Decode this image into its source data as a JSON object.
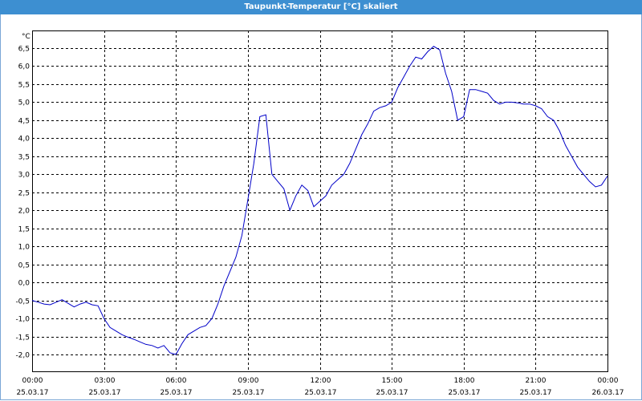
{
  "window": {
    "title": "Taupunkt-Temperatur [°C] skaliert"
  },
  "chart_data": {
    "type": "line",
    "title": "Taupunkt-Temperatur [°C] skaliert",
    "ylabel": "°C",
    "xlabel": "",
    "ylim": [
      -2.25,
      6.75
    ],
    "xlim": [
      0,
      24
    ],
    "grid": true,
    "line_color": "#0000c8",
    "grid_color": "#000000",
    "y_ticks": [
      "6,5",
      "6,0",
      "5,5",
      "5,0",
      "4,5",
      "4,0",
      "3,5",
      "3,0",
      "2,5",
      "2,0",
      "1,5",
      "1,0",
      "0,5",
      "0,0",
      "-0,5",
      "-1,0",
      "-1,5",
      "-2,0"
    ],
    "x_ticks": [
      {
        "time": "00:00",
        "date": "25.03.17"
      },
      {
        "time": "03:00",
        "date": "25.03.17"
      },
      {
        "time": "06:00",
        "date": "25.03.17"
      },
      {
        "time": "09:00",
        "date": "25.03.17"
      },
      {
        "time": "12:00",
        "date": "25.03.17"
      },
      {
        "time": "15:00",
        "date": "25.03.17"
      },
      {
        "time": "18:00",
        "date": "25.03.17"
      },
      {
        "time": "21:00",
        "date": "25.03.17"
      },
      {
        "time": "00:00",
        "date": "26.03.17"
      }
    ],
    "series": [
      {
        "x": [
          0,
          0.25,
          0.5,
          0.75,
          1.0,
          1.25,
          1.5,
          1.75,
          2.0,
          2.25,
          2.5,
          2.75,
          3.0,
          3.25,
          3.5,
          3.75,
          4.0,
          4.25,
          4.5,
          4.75,
          5.0,
          5.25,
          5.5,
          5.75,
          6.0,
          6.25,
          6.5,
          6.75,
          7.0,
          7.25,
          7.5,
          7.75,
          8.0,
          8.25,
          8.5,
          8.75,
          9.0,
          9.25,
          9.5,
          9.75,
          10.0,
          10.25,
          10.5,
          10.75,
          11.0,
          11.25,
          11.5,
          11.75,
          12.0,
          12.25,
          12.5,
          12.75,
          13.0,
          13.25,
          13.5,
          13.75,
          14.0,
          14.25,
          14.5,
          14.75,
          15.0,
          15.25,
          15.5,
          15.75,
          16.0,
          16.25,
          16.5,
          16.75,
          17.0,
          17.25,
          17.5,
          17.75,
          18.0,
          18.25,
          18.5,
          18.75,
          19.0,
          19.25,
          19.5,
          19.75,
          20.0,
          20.25,
          20.5,
          20.75,
          21.0,
          21.25,
          21.5,
          21.75,
          22.0,
          22.25,
          22.5,
          22.75,
          23.0,
          23.25,
          23.5,
          23.75,
          24.0
        ],
        "y": [
          -0.5,
          -0.55,
          -0.6,
          -0.62,
          -0.55,
          -0.48,
          -0.58,
          -0.68,
          -0.6,
          -0.55,
          -0.62,
          -0.65,
          -1.0,
          -1.25,
          -1.35,
          -1.45,
          -1.52,
          -1.58,
          -1.65,
          -1.72,
          -1.75,
          -1.82,
          -1.75,
          -1.95,
          -2.0,
          -1.7,
          -1.45,
          -1.35,
          -1.25,
          -1.2,
          -1.0,
          -0.6,
          -0.1,
          0.3,
          0.7,
          1.3,
          2.3,
          3.3,
          4.6,
          4.65,
          3.0,
          2.8,
          2.6,
          2.0,
          2.4,
          2.7,
          2.55,
          2.1,
          2.25,
          2.4,
          2.7,
          2.85,
          3.0,
          3.3,
          3.7,
          4.1,
          4.4,
          4.75,
          4.85,
          4.9,
          5.0,
          5.4,
          5.7,
          6.0,
          6.25,
          6.2,
          6.4,
          6.55,
          6.45,
          5.8,
          5.3,
          4.5,
          4.6,
          5.35,
          5.35,
          5.3,
          5.25,
          5.05,
          4.95,
          5.0,
          5.0,
          4.98,
          4.95,
          4.95,
          4.9,
          4.82,
          4.6,
          4.5,
          4.2,
          3.8,
          3.5,
          3.2,
          3.0,
          2.8,
          2.65,
          2.7,
          2.95
        ]
      }
    ]
  }
}
